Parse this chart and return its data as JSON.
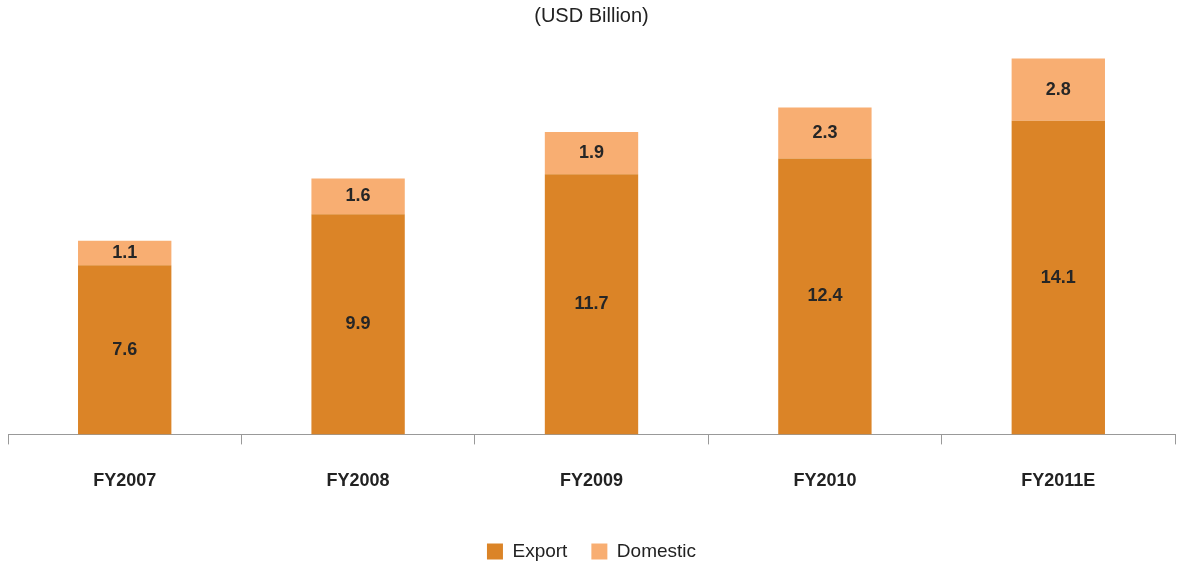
{
  "chart_data": {
    "type": "bar",
    "title": "(USD Billion)",
    "categories": [
      "FY2007",
      "FY2008",
      "FY2009",
      "FY2010",
      "FY2011E"
    ],
    "stacked": true,
    "data_labels": true,
    "legend": "bottom",
    "grid": false,
    "series": [
      {
        "name": "Export",
        "color": "#db8427",
        "values": [
          7.6,
          9.9,
          11.7,
          12.4,
          14.1
        ]
      },
      {
        "name": "Domestic",
        "color": "#f8ae72",
        "values": [
          1.1,
          1.6,
          1.9,
          2.3,
          2.8
        ]
      }
    ]
  }
}
